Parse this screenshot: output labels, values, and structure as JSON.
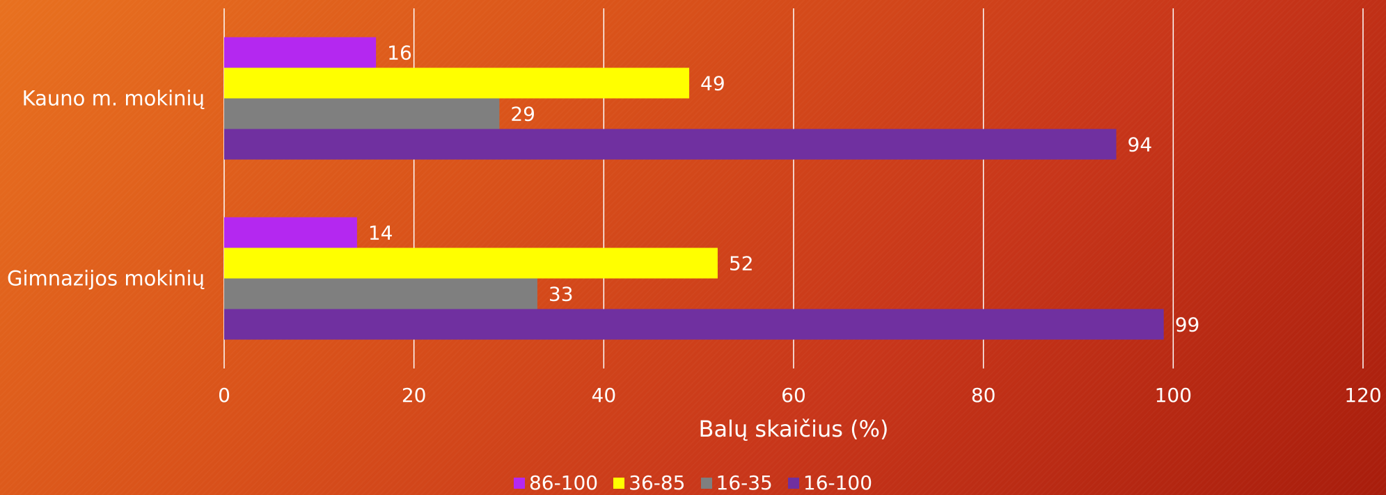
{
  "chart_data": {
    "type": "bar",
    "orientation": "horizontal",
    "categories": [
      "Kauno m. mokinių",
      "Gimnazijos mokinių"
    ],
    "series": [
      {
        "name": "86-100",
        "values": [
          16,
          14
        ],
        "color": "#b428f0"
      },
      {
        "name": "36-85",
        "values": [
          49,
          52
        ],
        "color": "#ffff00"
      },
      {
        "name": "16-35",
        "values": [
          29,
          33
        ],
        "color": "#7f7f7f"
      },
      {
        "name": "16-100",
        "values": [
          94,
          99
        ],
        "color": "#7030a0"
      }
    ],
    "title": "",
    "xlabel": "Balų skaičius (%)",
    "ylabel": "",
    "xlim": [
      0,
      120
    ],
    "xticks": [
      "0",
      "20",
      "40",
      "60",
      "80",
      "100",
      "120"
    ],
    "grid": true,
    "legend_position": "bottom",
    "data_labels": true
  }
}
